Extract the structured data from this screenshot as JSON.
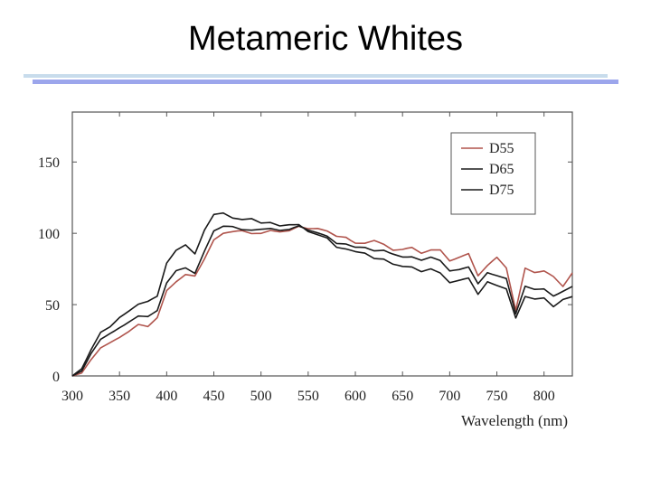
{
  "slide": {
    "title": "Metameric Whites"
  },
  "chart_data": {
    "type": "line",
    "title": "",
    "xlabel": "Wavelength (nm)",
    "ylabel": "",
    "xlim": [
      300,
      830
    ],
    "ylim": [
      0,
      185
    ],
    "x_ticks": [
      300,
      350,
      400,
      450,
      500,
      550,
      600,
      650,
      700,
      750,
      800
    ],
    "y_ticks": [
      0,
      50,
      100,
      150
    ],
    "legend_position": "top-right",
    "grid": false,
    "x": [
      300,
      305,
      310,
      315,
      320,
      325,
      330,
      335,
      340,
      345,
      350,
      355,
      360,
      365,
      370,
      375,
      380,
      385,
      390,
      395,
      400,
      405,
      410,
      415,
      420,
      425,
      430,
      435,
      440,
      445,
      450,
      455,
      460,
      465,
      470,
      475,
      480,
      485,
      490,
      495,
      500,
      505,
      510,
      515,
      520,
      525,
      530,
      535,
      540,
      545,
      550,
      555,
      560,
      565,
      570,
      575,
      580,
      585,
      590,
      595,
      600,
      605,
      610,
      615,
      620,
      625,
      630,
      635,
      640,
      645,
      650,
      655,
      660,
      665,
      670,
      675,
      680,
      685,
      690,
      695,
      700,
      705,
      710,
      715,
      720,
      725,
      730,
      735,
      740,
      745,
      750,
      755,
      760,
      765,
      770,
      775,
      780,
      785,
      790,
      795,
      800,
      805,
      810,
      815,
      820,
      825,
      830
    ],
    "series": [
      {
        "name": "D55",
        "color": "#b0544c",
        "values": [
          0.0,
          1.0,
          2.1,
          6.9,
          11.6,
          15.6,
          19.7,
          21.5,
          23.3,
          25.2,
          27.0,
          29.1,
          31.2,
          33.7,
          36.1,
          35.4,
          34.6,
          37.7,
          40.8,
          50.3,
          59.8,
          62.9,
          66.0,
          68.5,
          71.1,
          70.6,
          70.1,
          76.0,
          82.0,
          88.7,
          95.4,
          97.7,
          100.0,
          100.6,
          101.2,
          101.6,
          101.9,
          100.8,
          99.8,
          99.9,
          99.9,
          101.0,
          102.0,
          101.5,
          101.0,
          101.4,
          101.8,
          103.4,
          104.9,
          104.0,
          103.2,
          103.3,
          103.4,
          102.5,
          101.6,
          99.8,
          97.9,
          97.6,
          97.2,
          95.0,
          93.1,
          93.0,
          93.0,
          94.0,
          95.0,
          93.7,
          92.4,
          90.2,
          88.1,
          88.4,
          88.7,
          89.5,
          90.1,
          88.0,
          86.0,
          87.1,
          88.3,
          88.3,
          88.4,
          84.5,
          80.6,
          81.8,
          83.1,
          84.5,
          85.8,
          78.0,
          70.2,
          73.8,
          77.4,
          80.4,
          83.2,
          79.5,
          75.7,
          60.9,
          46.0,
          60.8,
          75.6,
          74.0,
          72.5,
          73.0,
          73.6,
          71.7,
          69.7,
          66.2,
          62.7,
          67.4,
          72.2
        ]
      },
      {
        "name": "D65",
        "color": "#1a1a1a",
        "values": [
          0.0,
          1.8,
          3.5,
          9.7,
          15.9,
          20.8,
          25.7,
          27.7,
          29.7,
          31.7,
          33.8,
          35.7,
          37.8,
          39.9,
          42.0,
          41.8,
          41.6,
          43.7,
          45.8,
          55.5,
          65.2,
          69.5,
          73.8,
          74.8,
          75.8,
          73.8,
          71.9,
          79.7,
          87.5,
          94.6,
          101.7,
          103.3,
          105.0,
          104.9,
          104.7,
          103.6,
          102.5,
          102.4,
          102.2,
          102.5,
          102.8,
          103.1,
          103.4,
          102.7,
          102.0,
          102.4,
          102.7,
          104.0,
          105.2,
          103.8,
          102.2,
          101.3,
          100.3,
          99.2,
          98.1,
          95.5,
          92.9,
          92.7,
          92.5,
          91.3,
          90.2,
          90.2,
          90.1,
          88.9,
          87.7,
          87.9,
          88.1,
          86.7,
          85.4,
          84.4,
          83.4,
          83.4,
          83.5,
          82.3,
          81.1,
          82.2,
          83.3,
          82.1,
          80.9,
          77.2,
          73.6,
          74.1,
          74.6,
          75.5,
          76.4,
          70.5,
          64.6,
          68.5,
          72.4,
          71.3,
          70.3,
          69.3,
          68.3,
          55.9,
          43.5,
          53.2,
          62.9,
          61.8,
          60.7,
          60.8,
          61.0,
          58.5,
          56.0,
          57.6,
          59.3,
          61.0,
          62.8
        ]
      },
      {
        "name": "D75",
        "color": "#1a1a1a",
        "values": [
          0.0,
          2.6,
          5.1,
          11.8,
          18.6,
          24.6,
          30.6,
          32.5,
          34.4,
          37.7,
          41.0,
          43.2,
          45.5,
          47.9,
          50.3,
          51.3,
          52.3,
          54.1,
          55.9,
          67.5,
          79.1,
          83.6,
          88.1,
          90.0,
          91.9,
          88.7,
          85.6,
          93.9,
          102.2,
          107.7,
          113.2,
          113.7,
          114.2,
          112.4,
          110.7,
          110.2,
          109.7,
          110.0,
          110.3,
          108.7,
          107.2,
          107.4,
          107.6,
          106.4,
          105.2,
          105.6,
          106.0,
          106.0,
          106.1,
          103.7,
          101.2,
          100.1,
          99.0,
          97.9,
          96.8,
          93.5,
          90.2,
          89.6,
          89.0,
          88.1,
          87.2,
          86.6,
          86.1,
          84.2,
          82.3,
          82.1,
          81.9,
          80.1,
          78.3,
          77.6,
          76.8,
          76.6,
          76.4,
          74.7,
          73.1,
          74.1,
          75.1,
          73.6,
          72.2,
          68.8,
          65.4,
          66.2,
          67.0,
          67.9,
          68.7,
          63.0,
          57.2,
          61.6,
          66.0,
          64.7,
          63.4,
          62.3,
          61.1,
          50.9,
          40.6,
          48.2,
          55.7,
          54.8,
          53.9,
          54.3,
          54.7,
          51.6,
          48.5,
          51.0,
          53.6,
          54.6,
          55.6
        ]
      }
    ]
  }
}
